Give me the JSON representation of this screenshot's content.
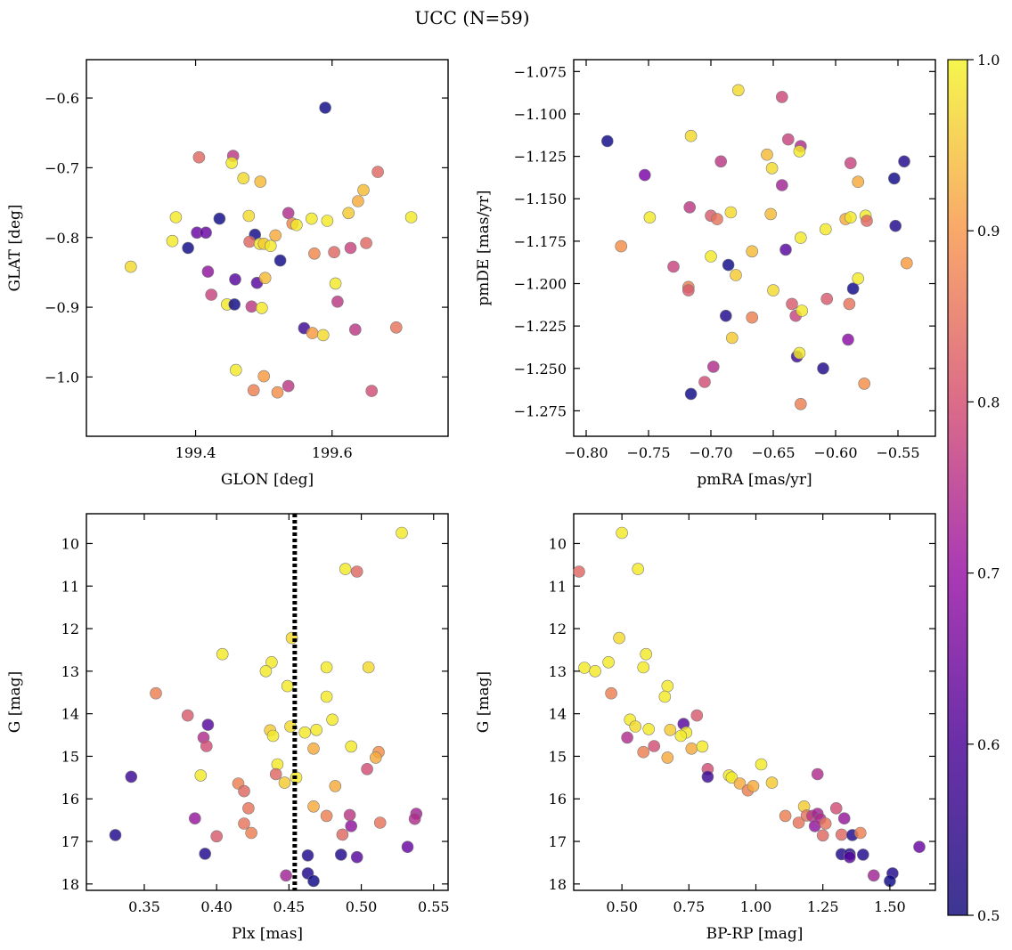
{
  "figure_title": "UCC (N=59)",
  "colorbar": {
    "ticks": [
      "0.5",
      "0.6",
      "0.7",
      "0.8",
      "0.9",
      "1.0"
    ],
    "range": [
      0.5,
      1.0
    ],
    "colormap": "plasma"
  },
  "chart_data": [
    {
      "type": "scatter",
      "xlabel": "GLON [deg]",
      "ylabel": "GLAT [deg]",
      "xlim": [
        199.24,
        199.77
      ],
      "ylim": [
        -1.085,
        -0.545
      ],
      "xticks": [
        "199.4",
        "199.6"
      ],
      "yticks": [
        "−0.6",
        "−0.7",
        "−0.8",
        "−0.9",
        "−1.0"
      ],
      "points": [
        [
          199.59,
          -0.614,
          0.5
        ],
        [
          199.405,
          -0.685,
          0.8
        ],
        [
          199.455,
          -0.683,
          0.72
        ],
        [
          199.453,
          -0.693,
          0.98
        ],
        [
          199.47,
          -0.715,
          0.96
        ],
        [
          199.495,
          -0.72,
          0.92
        ],
        [
          199.667,
          -0.706,
          0.8
        ],
        [
          199.646,
          -0.732,
          0.92
        ],
        [
          199.371,
          -0.771,
          0.98
        ],
        [
          199.435,
          -0.773,
          0.5
        ],
        [
          199.478,
          -0.769,
          0.96
        ],
        [
          199.536,
          -0.765,
          0.7
        ],
        [
          199.542,
          -0.78,
          0.85
        ],
        [
          199.548,
          -0.782,
          0.98
        ],
        [
          199.57,
          -0.773,
          0.98
        ],
        [
          199.593,
          -0.776,
          0.98
        ],
        [
          199.624,
          -0.765,
          0.94
        ],
        [
          199.638,
          -0.748,
          0.9
        ],
        [
          199.716,
          -0.771,
          0.98
        ],
        [
          199.402,
          -0.793,
          0.6
        ],
        [
          199.415,
          -0.793,
          0.6
        ],
        [
          199.487,
          -0.796,
          0.5
        ],
        [
          199.366,
          -0.805,
          0.98
        ],
        [
          199.389,
          -0.815,
          0.5
        ],
        [
          199.479,
          -0.806,
          0.8
        ],
        [
          199.494,
          -0.809,
          0.98
        ],
        [
          199.5,
          -0.809,
          0.94
        ],
        [
          199.51,
          -0.812,
          0.98
        ],
        [
          199.517,
          -0.797,
          0.9
        ],
        [
          199.574,
          -0.823,
          0.85
        ],
        [
          199.603,
          -0.821,
          0.8
        ],
        [
          199.627,
          -0.815,
          0.74
        ],
        [
          199.65,
          -0.808,
          0.8
        ],
        [
          199.305,
          -0.842,
          0.96
        ],
        [
          199.418,
          -0.849,
          0.65
        ],
        [
          199.458,
          -0.86,
          0.58
        ],
        [
          199.49,
          -0.865,
          0.58
        ],
        [
          199.524,
          -0.833,
          0.5
        ],
        [
          199.502,
          -0.858,
          0.92
        ],
        [
          199.605,
          -0.866,
          0.98
        ],
        [
          199.423,
          -0.882,
          0.74
        ],
        [
          199.446,
          -0.896,
          0.98
        ],
        [
          199.457,
          -0.896,
          0.5
        ],
        [
          199.482,
          -0.899,
          0.72
        ],
        [
          199.497,
          -0.901,
          0.98
        ],
        [
          199.608,
          -0.892,
          0.72
        ],
        [
          199.559,
          -0.93,
          0.55
        ],
        [
          199.571,
          -0.937,
          0.88
        ],
        [
          199.587,
          -0.94,
          0.96
        ],
        [
          199.634,
          -0.932,
          0.72
        ],
        [
          199.694,
          -0.929,
          0.82
        ],
        [
          199.459,
          -0.99,
          0.98
        ],
        [
          199.5,
          -0.999,
          0.88
        ],
        [
          199.485,
          -1.019,
          0.84
        ],
        [
          199.52,
          -1.022,
          0.86
        ],
        [
          199.536,
          -1.013,
          0.72
        ],
        [
          199.658,
          -1.02,
          0.76
        ]
      ]
    },
    {
      "type": "scatter",
      "xlabel": "pmRA [mas/yr]",
      "ylabel": "pmDE [mas/yr]",
      "xlim": [
        -0.81,
        -0.52
      ],
      "ylim": [
        -1.29,
        -1.068
      ],
      "xticks": [
        "−0.80",
        "−0.75",
        "−0.70",
        "−0.65",
        "−0.60",
        "−0.55"
      ],
      "yticks": [
        "−1.075",
        "−1.100",
        "−1.125",
        "−1.150",
        "−1.175",
        "−1.200",
        "−1.225",
        "−1.250",
        "−1.275"
      ],
      "points": [
        [
          -0.783,
          -1.116,
          0.5
        ],
        [
          -0.678,
          -1.086,
          0.96
        ],
        [
          -0.643,
          -1.09,
          0.75
        ],
        [
          -0.716,
          -1.113,
          0.96
        ],
        [
          -0.638,
          -1.115,
          0.74
        ],
        [
          -0.628,
          -1.119,
          0.7
        ],
        [
          -0.629,
          -1.122,
          0.98
        ],
        [
          -0.655,
          -1.124,
          0.92
        ],
        [
          -0.692,
          -1.128,
          0.72
        ],
        [
          -0.753,
          -1.136,
          0.62
        ],
        [
          -0.651,
          -1.132,
          0.96
        ],
        [
          -0.588,
          -1.129,
          0.74
        ],
        [
          -0.545,
          -1.128,
          0.52
        ],
        [
          -0.582,
          -1.14,
          0.9
        ],
        [
          -0.643,
          -1.142,
          0.68
        ],
        [
          -0.553,
          -1.138,
          0.5
        ],
        [
          -0.749,
          -1.161,
          0.98
        ],
        [
          -0.717,
          -1.155,
          0.72
        ],
        [
          -0.7,
          -1.16,
          0.78
        ],
        [
          -0.695,
          -1.162,
          0.82
        ],
        [
          -0.684,
          -1.158,
          0.96
        ],
        [
          -0.652,
          -1.159,
          0.92
        ],
        [
          -0.608,
          -1.168,
          0.98
        ],
        [
          -0.592,
          -1.162,
          0.9
        ],
        [
          -0.588,
          -1.161,
          0.98
        ],
        [
          -0.576,
          -1.16,
          0.98
        ],
        [
          -0.575,
          -1.163,
          0.8
        ],
        [
          -0.552,
          -1.166,
          0.52
        ],
        [
          -0.772,
          -1.178,
          0.86
        ],
        [
          -0.667,
          -1.181,
          0.92
        ],
        [
          -0.628,
          -1.173,
          0.98
        ],
        [
          -0.64,
          -1.18,
          0.58
        ],
        [
          -0.7,
          -1.184,
          0.98
        ],
        [
          -0.73,
          -1.19,
          0.74
        ],
        [
          -0.686,
          -1.189,
          0.5
        ],
        [
          -0.68,
          -1.195,
          0.94
        ],
        [
          -0.543,
          -1.188,
          0.88
        ],
        [
          -0.718,
          -1.202,
          0.84
        ],
        [
          -0.718,
          -1.204,
          0.78
        ],
        [
          -0.65,
          -1.204,
          0.96
        ],
        [
          -0.607,
          -1.209,
          0.78
        ],
        [
          -0.586,
          -1.203,
          0.5
        ],
        [
          -0.582,
          -1.197,
          0.98
        ],
        [
          -0.635,
          -1.212,
          0.78
        ],
        [
          -0.589,
          -1.212,
          0.82
        ],
        [
          -0.688,
          -1.219,
          0.52
        ],
        [
          -0.667,
          -1.22,
          0.84
        ],
        [
          -0.632,
          -1.219,
          0.74
        ],
        [
          -0.627,
          -1.216,
          0.98
        ],
        [
          -0.683,
          -1.232,
          0.94
        ],
        [
          -0.59,
          -1.233,
          0.64
        ],
        [
          -0.631,
          -1.243,
          0.55
        ],
        [
          -0.629,
          -1.241,
          0.98
        ],
        [
          -0.698,
          -1.249,
          0.7
        ],
        [
          -0.705,
          -1.258,
          0.76
        ],
        [
          -0.61,
          -1.25,
          0.52
        ],
        [
          -0.577,
          -1.259,
          0.86
        ],
        [
          -0.716,
          -1.265,
          0.5
        ],
        [
          -0.628,
          -1.271,
          0.84
        ]
      ]
    },
    {
      "type": "scatter",
      "xlabel": "Plx [mas]",
      "ylabel": "G [mag]",
      "xlim": [
        0.31,
        0.56
      ],
      "ylim": [
        18.15,
        9.3
      ],
      "xticks": [
        "0.35",
        "0.40",
        "0.45",
        "0.50",
        "0.55"
      ],
      "yticks": [
        "10",
        "11",
        "12",
        "13",
        "14",
        "15",
        "16",
        "17",
        "18"
      ],
      "vline": 0.454,
      "points": [
        [
          0.528,
          9.75,
          0.98
        ],
        [
          0.489,
          10.6,
          0.98
        ],
        [
          0.497,
          10.66,
          0.8
        ],
        [
          0.452,
          12.22,
          0.96
        ],
        [
          0.404,
          12.6,
          0.98
        ],
        [
          0.438,
          12.79,
          0.98
        ],
        [
          0.434,
          13.0,
          0.98
        ],
        [
          0.476,
          12.91,
          0.98
        ],
        [
          0.505,
          12.91,
          0.96
        ],
        [
          0.449,
          13.35,
          0.98
        ],
        [
          0.358,
          13.52,
          0.84
        ],
        [
          0.476,
          13.6,
          0.98
        ],
        [
          0.38,
          14.04,
          0.78
        ],
        [
          0.394,
          14.26,
          0.58
        ],
        [
          0.451,
          14.3,
          0.96
        ],
        [
          0.437,
          14.39,
          0.94
        ],
        [
          0.439,
          14.52,
          0.98
        ],
        [
          0.461,
          14.44,
          0.98
        ],
        [
          0.469,
          14.38,
          0.98
        ],
        [
          0.48,
          14.14,
          0.98
        ],
        [
          0.391,
          14.56,
          0.7
        ],
        [
          0.393,
          14.76,
          0.76
        ],
        [
          0.467,
          14.82,
          0.9
        ],
        [
          0.493,
          14.77,
          0.98
        ],
        [
          0.512,
          14.9,
          0.86
        ],
        [
          0.51,
          15.03,
          0.9
        ],
        [
          0.504,
          15.3,
          0.76
        ],
        [
          0.389,
          15.45,
          0.98
        ],
        [
          0.341,
          15.48,
          0.55
        ],
        [
          0.442,
          15.19,
          0.98
        ],
        [
          0.441,
          15.42,
          0.8
        ],
        [
          0.447,
          15.62,
          0.94
        ],
        [
          0.455,
          15.5,
          0.98
        ],
        [
          0.415,
          15.64,
          0.84
        ],
        [
          0.419,
          15.82,
          0.8
        ],
        [
          0.422,
          16.22,
          0.82
        ],
        [
          0.467,
          16.18,
          0.9
        ],
        [
          0.482,
          15.7,
          0.9
        ],
        [
          0.476,
          16.4,
          0.84
        ],
        [
          0.492,
          16.38,
          0.72
        ],
        [
          0.513,
          16.56,
          0.82
        ],
        [
          0.538,
          16.35,
          0.68
        ],
        [
          0.537,
          16.47,
          0.7
        ],
        [
          0.385,
          16.46,
          0.66
        ],
        [
          0.419,
          16.58,
          0.82
        ],
        [
          0.424,
          16.8,
          0.84
        ],
        [
          0.4,
          16.88,
          0.78
        ],
        [
          0.33,
          16.85,
          0.52
        ],
        [
          0.487,
          16.84,
          0.8
        ],
        [
          0.493,
          16.64,
          0.65
        ],
        [
          0.532,
          17.13,
          0.6
        ],
        [
          0.392,
          17.29,
          0.52
        ],
        [
          0.463,
          17.33,
          0.52
        ],
        [
          0.486,
          17.31,
          0.52
        ],
        [
          0.497,
          17.37,
          0.58
        ],
        [
          0.448,
          17.8,
          0.68
        ],
        [
          0.463,
          17.75,
          0.52
        ],
        [
          0.467,
          17.93,
          0.5
        ]
      ]
    },
    {
      "type": "scatter",
      "xlabel": "BP-RP [mag]",
      "ylabel": "G [mag]",
      "xlim": [
        0.32,
        1.67
      ],
      "ylim": [
        18.15,
        9.3
      ],
      "xticks": [
        "0.50",
        "0.75",
        "1.00",
        "1.25",
        "1.50"
      ],
      "yticks": [
        "10",
        "11",
        "12",
        "13",
        "14",
        "15",
        "16",
        "17",
        "18"
      ],
      "points": [
        [
          0.5,
          9.75,
          0.98
        ],
        [
          0.56,
          10.6,
          0.98
        ],
        [
          0.34,
          10.66,
          0.8
        ],
        [
          0.49,
          12.22,
          0.96
        ],
        [
          0.59,
          12.6,
          0.98
        ],
        [
          0.45,
          12.79,
          0.98
        ],
        [
          0.36,
          12.92,
          0.98
        ],
        [
          0.4,
          13.0,
          0.98
        ],
        [
          0.58,
          12.91,
          0.98
        ],
        [
          0.67,
          13.35,
          0.98
        ],
        [
          0.66,
          13.6,
          0.98
        ],
        [
          0.46,
          13.52,
          0.84
        ],
        [
          0.53,
          14.14,
          0.98
        ],
        [
          0.55,
          14.3,
          0.96
        ],
        [
          0.6,
          14.36,
          0.98
        ],
        [
          0.52,
          14.56,
          0.7
        ],
        [
          0.73,
          14.24,
          0.58
        ],
        [
          0.74,
          14.44,
          0.98
        ],
        [
          0.72,
          14.52,
          0.98
        ],
        [
          0.78,
          14.04,
          0.78
        ],
        [
          0.68,
          14.38,
          0.94
        ],
        [
          0.62,
          14.76,
          0.76
        ],
        [
          0.58,
          14.9,
          0.84
        ],
        [
          0.67,
          15.03,
          0.9
        ],
        [
          0.76,
          14.82,
          0.9
        ],
        [
          0.8,
          14.77,
          0.98
        ],
        [
          0.82,
          15.3,
          0.76
        ],
        [
          0.82,
          15.48,
          0.55
        ],
        [
          0.9,
          15.45,
          0.98
        ],
        [
          0.91,
          15.5,
          0.98
        ],
        [
          0.94,
          15.64,
          0.9
        ],
        [
          0.97,
          15.8,
          0.84
        ],
        [
          0.99,
          15.7,
          0.9
        ],
        [
          1.02,
          15.19,
          0.98
        ],
        [
          1.06,
          15.62,
          0.94
        ],
        [
          1.11,
          16.4,
          0.84
        ],
        [
          1.16,
          16.56,
          0.82
        ],
        [
          1.18,
          16.18,
          0.94
        ],
        [
          1.19,
          16.39,
          0.82
        ],
        [
          1.21,
          16.4,
          0.72
        ],
        [
          1.22,
          16.64,
          0.65
        ],
        [
          1.23,
          16.35,
          0.68
        ],
        [
          1.23,
          15.42,
          0.7
        ],
        [
          1.24,
          16.47,
          0.7
        ],
        [
          1.25,
          16.86,
          0.8
        ],
        [
          1.26,
          16.58,
          0.82
        ],
        [
          1.3,
          16.22,
          0.76
        ],
        [
          1.32,
          16.84,
          0.8
        ],
        [
          1.33,
          16.46,
          0.66
        ],
        [
          1.36,
          16.85,
          0.52
        ],
        [
          1.39,
          16.8,
          0.84
        ],
        [
          1.32,
          17.3,
          0.52
        ],
        [
          1.35,
          17.3,
          0.52
        ],
        [
          1.35,
          17.37,
          0.58
        ],
        [
          1.4,
          17.31,
          0.52
        ],
        [
          1.44,
          17.8,
          0.68
        ],
        [
          1.51,
          17.75,
          0.52
        ],
        [
          1.5,
          17.93,
          0.5
        ],
        [
          1.61,
          17.13,
          0.6
        ]
      ]
    }
  ]
}
